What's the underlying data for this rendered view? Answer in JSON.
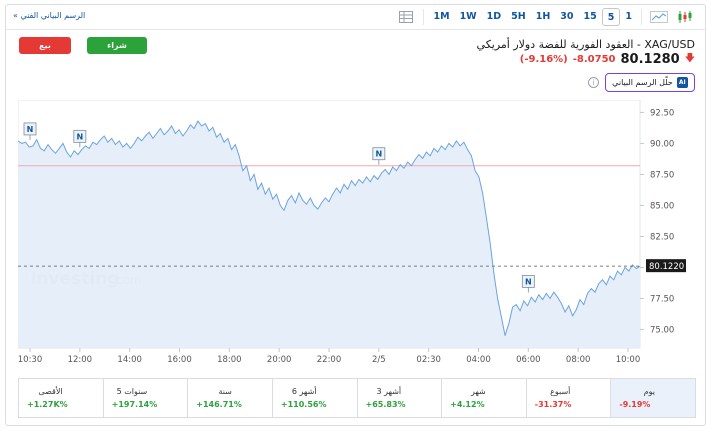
{
  "toolbar": {
    "tech_chart_link": "الرسم البياني الفني »",
    "timeframes": [
      "1M",
      "1W",
      "1D",
      "5H",
      "1H",
      "30",
      "15",
      "5",
      "1"
    ],
    "active_timeframe": "5"
  },
  "header": {
    "sell_label": "بيع",
    "buy_label": "شراء",
    "title": "XAG/USD - العقود الفورية للفضة دولار أمريكي",
    "price": "80.1280",
    "change": "-8.0750",
    "change_pct": "(-9.16%)",
    "analyze_label": "حلّل الرسم البياني",
    "ai_badge": "AI",
    "info_glyph": "i"
  },
  "chart_data": {
    "type": "area",
    "x_labels": [
      "10:30",
      "12:00",
      "14:00",
      "16:00",
      "18:00",
      "20:00",
      "22:00",
      "2/5",
      "02:30",
      "04:00",
      "06:00",
      "08:00",
      "10:00"
    ],
    "y_ticks": [
      92.5,
      90.0,
      87.5,
      85.0,
      82.5,
      80.0,
      77.5,
      75.0
    ],
    "ylim": [
      73.5,
      93.5
    ],
    "current_price_label": "80.1220",
    "reference_line": 88.2,
    "watermark": "Investing",
    "watermark_suffix": ".com",
    "news_marker_label": "N",
    "colors": {
      "line": "#6aa3e0",
      "fill": "#e3edf8",
      "ref_line": "#f2a7ad",
      "price_tag": "#1a1a1a"
    },
    "series": [
      {
        "values": [
          90.2,
          90.0,
          90.1,
          89.7,
          89.8,
          90.3,
          89.6,
          89.4,
          89.9,
          89.5,
          89.2,
          89.6,
          90.0,
          89.3,
          88.9,
          89.4,
          89.1,
          89.5,
          89.8,
          89.6,
          90.1,
          89.9,
          90.3,
          90.6,
          90.1,
          90.4,
          89.9,
          90.2,
          89.7,
          90.0,
          89.6,
          90.0,
          90.5,
          90.2,
          90.6,
          90.9,
          90.4,
          90.8,
          91.2,
          90.7,
          91.0,
          91.4,
          90.8,
          91.1,
          90.6,
          91.0,
          91.5,
          91.2,
          91.8,
          91.4,
          91.6,
          91.0,
          91.3,
          90.5,
          90.8,
          90.1,
          90.4,
          89.5,
          89.9,
          89.0,
          87.8,
          88.2,
          87.0,
          87.5,
          86.3,
          86.8,
          85.9,
          86.4,
          85.5,
          85.9,
          85.0,
          84.6,
          85.4,
          85.8,
          85.2,
          86.0,
          85.4,
          85.1,
          85.6,
          85.0,
          84.7,
          85.2,
          85.6,
          85.3,
          85.9,
          86.4,
          86.0,
          86.7,
          86.3,
          87.0,
          86.6,
          87.1,
          86.8,
          87.3,
          86.9,
          87.4,
          87.1,
          87.6,
          87.9,
          87.5,
          88.1,
          87.8,
          88.3,
          88.0,
          88.5,
          88.2,
          88.7,
          89.1,
          88.8,
          89.3,
          89.0,
          89.6,
          89.3,
          89.8,
          89.5,
          90.0,
          89.7,
          90.2,
          89.8,
          90.1,
          89.5,
          89.0,
          87.8,
          87.3,
          86.0,
          84.0,
          82.0,
          79.5,
          77.5,
          76.0,
          74.5,
          75.5,
          76.8,
          77.0,
          76.5,
          77.3,
          76.9,
          77.6,
          77.2,
          77.8,
          77.4,
          77.9,
          77.5,
          78.0,
          77.6,
          77.1,
          76.4,
          76.9,
          76.1,
          76.6,
          77.4,
          77.0,
          77.9,
          78.3,
          78.0,
          78.7,
          79.0,
          78.6,
          79.3,
          79.0,
          79.7,
          79.4,
          80.0,
          79.7,
          80.2,
          79.9,
          80.1
        ]
      }
    ],
    "news_markers": [
      {
        "x_label": "10:30",
        "value": 90.2
      },
      {
        "x_label": "12:00",
        "value": 89.6
      },
      {
        "x_label": "2/5",
        "value": 88.2
      },
      {
        "x_label": "06:00",
        "value": 77.9
      }
    ]
  },
  "stats": [
    {
      "label": "يوم",
      "value": "-9.19%",
      "color": "#e53935",
      "active": true
    },
    {
      "label": "أسبوع",
      "value": "-31.37%",
      "color": "#e53935",
      "active": false
    },
    {
      "label": "شهر",
      "value": "+4.12%",
      "color": "#2ba33a",
      "active": false
    },
    {
      "label": "3 أشهر",
      "value": "+65.83%",
      "color": "#2ba33a",
      "active": false
    },
    {
      "label": "6 أشهر",
      "value": "+110.56%",
      "color": "#2ba33a",
      "active": false
    },
    {
      "label": "سنة",
      "value": "+146.71%",
      "color": "#2ba33a",
      "active": false
    },
    {
      "label": "5 سنوات",
      "value": "+197.14%",
      "color": "#2ba33a",
      "active": false
    },
    {
      "label": "الأقصى",
      "value": "+1.27K%",
      "color": "#2ba33a",
      "active": false
    }
  ]
}
